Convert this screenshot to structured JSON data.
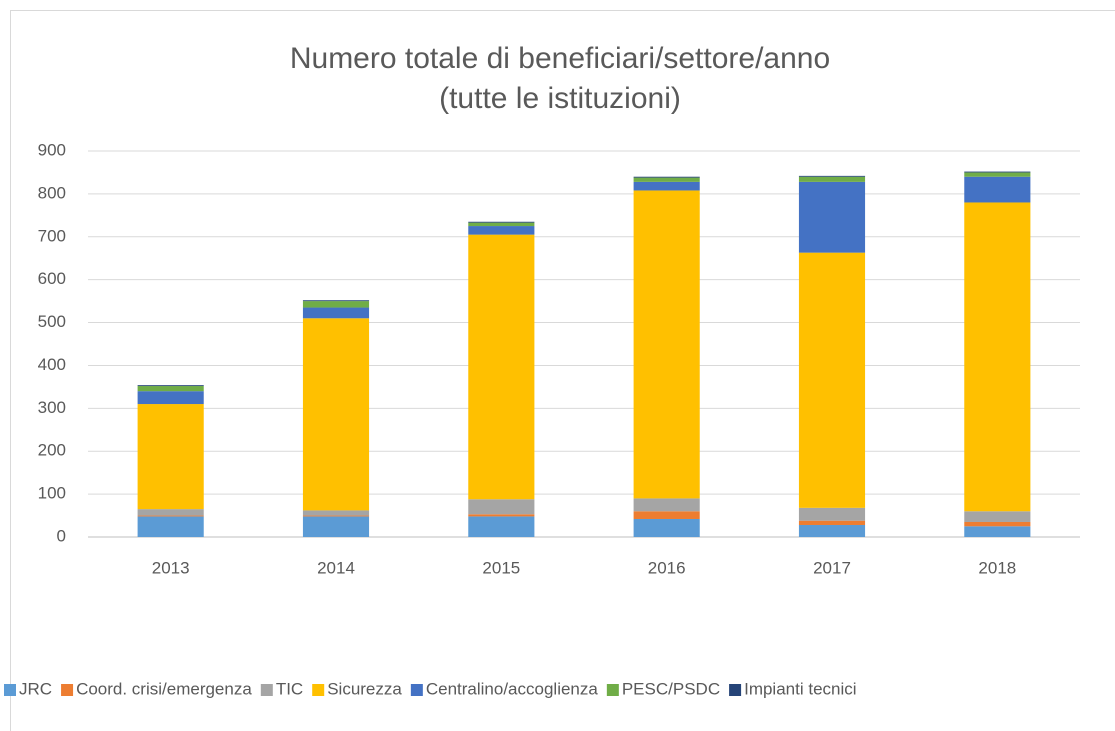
{
  "chart_data": {
    "type": "stacked_bar",
    "title": [
      "Numero totale di beneficiari/settore/anno",
      "(tutte le istituzioni)"
    ],
    "categories": [
      "2013",
      "2014",
      "2015",
      "2016",
      "2017",
      "2018"
    ],
    "series": [
      {
        "name": "JRC",
        "color": "#5b9bd5",
        "values": [
          48,
          48,
          48,
          42,
          28,
          25
        ]
      },
      {
        "name": "Coord. crisi/emergenza",
        "color": "#ed7d31",
        "values": [
          2,
          2,
          5,
          18,
          10,
          10
        ]
      },
      {
        "name": "TIC",
        "color": "#a5a5a5",
        "values": [
          15,
          12,
          35,
          30,
          30,
          25
        ]
      },
      {
        "name": "Sicurezza",
        "color": "#ffc000",
        "values": [
          245,
          448,
          617,
          718,
          595,
          720
        ]
      },
      {
        "name": "Centralino/accoglienza",
        "color": "#4472c4",
        "values": [
          30,
          25,
          20,
          20,
          165,
          60
        ]
      },
      {
        "name": "PESC/PSDC",
        "color": "#70ad47",
        "values": [
          12,
          15,
          8,
          10,
          12,
          10
        ]
      },
      {
        "name": "Impianti tecnici",
        "color": "#264478",
        "values": [
          2,
          2,
          2,
          2,
          2,
          2
        ]
      }
    ],
    "ylim": [
      0,
      900
    ],
    "yticks": [
      0,
      100,
      200,
      300,
      400,
      500,
      600,
      700,
      800,
      900
    ],
    "grid": true,
    "legend": "bottom"
  }
}
